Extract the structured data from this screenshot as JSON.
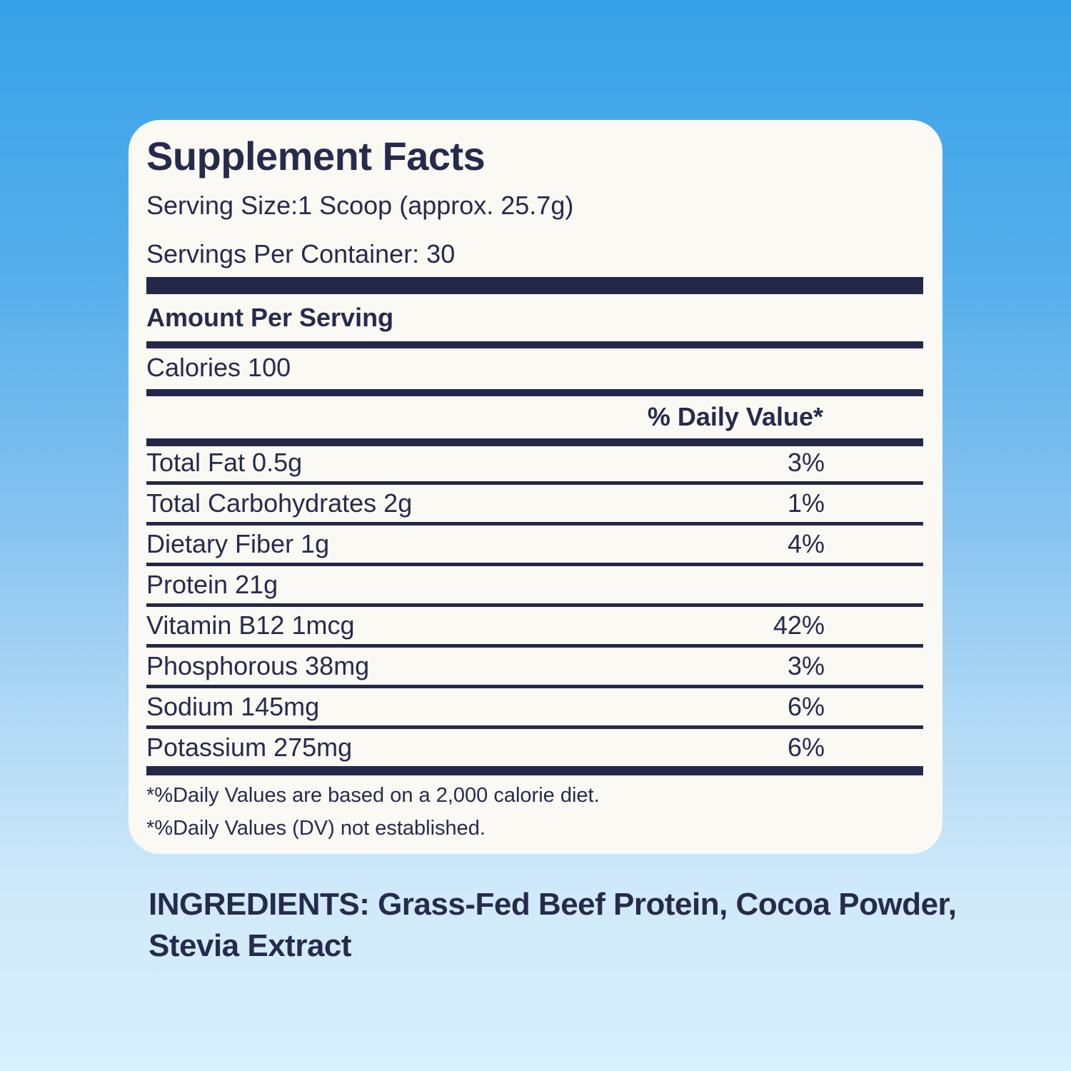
{
  "colors": {
    "navy_text": "#262b4d",
    "rule_bars": "#242848",
    "card_background": "#fbf9f4",
    "background_gradient_top": "#37a2e8",
    "background_gradient_bottom": "#d8f0fc"
  },
  "supplement_facts": {
    "title": "Supplement Facts",
    "serving_size": "Serving Size:1 Scoop (approx. 25.7g)",
    "servings_per_container": "Servings Per Container: 30",
    "amount_per_serving": "Amount Per Serving",
    "calories": "Calories 100",
    "daily_value_header": "% Daily Value*",
    "rows": [
      {
        "name": "Total Fat 0.5g",
        "dv": "3%"
      },
      {
        "name": "Total Carbohydrates 2g",
        "dv": "1%"
      },
      {
        "name": "Dietary Fiber 1g",
        "dv": "4%"
      },
      {
        "name": "Protein 21g",
        "dv": ""
      },
      {
        "name": "Vitamin B12  1mcg",
        "dv": "42%"
      },
      {
        "name": "Phosphorous 38mg",
        "dv": "3%"
      },
      {
        "name": "Sodium 145mg",
        "dv": "6%"
      },
      {
        "name": "Potassium 275mg",
        "dv": "6%"
      }
    ],
    "footnotes": [
      "*%Daily Values are based on a 2,000 calorie diet.",
      "*%Daily Values (DV) not established."
    ]
  },
  "ingredients": {
    "lines": [
      "INGREDIENTS: Grass-Fed Beef Protein, Cocoa Powder,",
      "Stevia Extract"
    ]
  }
}
